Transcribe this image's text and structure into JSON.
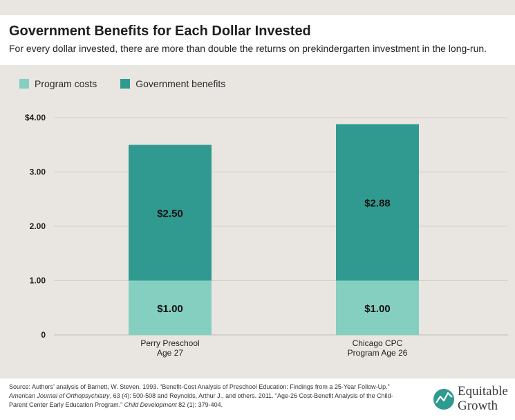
{
  "header": {
    "title": "Government Benefits for Each Dollar Invested",
    "subtitle": "For every dollar invested, there are more than double the returns on prekindergarten investment in the long-run."
  },
  "legend": {
    "items": [
      {
        "label": "Program costs",
        "color": "#84cfc0"
      },
      {
        "label": "Government benefits",
        "color": "#319a90"
      }
    ]
  },
  "chart_data": {
    "type": "bar",
    "stacked": true,
    "categories": [
      [
        "Perry Preschool",
        "Age 27"
      ],
      [
        "Chicago CPC",
        "Program Age 26"
      ]
    ],
    "series": [
      {
        "name": "Program costs",
        "color": "#84cfc0",
        "values": [
          1.0,
          1.0
        ],
        "labels": [
          "$1.00",
          "$1.00"
        ]
      },
      {
        "name": "Government benefits",
        "color": "#319a90",
        "values": [
          2.5,
          2.88
        ],
        "labels": [
          "$2.50",
          "$2.88"
        ]
      }
    ],
    "ylim": [
      0,
      4
    ],
    "yticks": [
      {
        "value": 0,
        "label": "0"
      },
      {
        "value": 1,
        "label": "1.00"
      },
      {
        "value": 2,
        "label": "2.00"
      },
      {
        "value": 3,
        "label": "3.00"
      },
      {
        "value": 4,
        "label": "$4.00"
      }
    ],
    "grid": true,
    "legend_position": "top-left"
  },
  "footer": {
    "source_parts": [
      {
        "text": "Source: Authors’ analysis of Barnett, W. Steven. 1993. “Benefit-Cost Analysis of Preschool Education: Findings from a 25-Year Follow-Up.” ",
        "italic": false
      },
      {
        "text": "American Journal of Orthopsychiatry",
        "italic": true
      },
      {
        "text": ", 63 (4): 500-508 and Reynolds, Arthur J., and others. 2011. “Age-26 Cost-Benefit Analysis of the Child-Parent Center Early Education Program.” ",
        "italic": false
      },
      {
        "text": "Child Development",
        "italic": true
      },
      {
        "text": " 82 (1): 379-404.",
        "italic": false
      }
    ],
    "logo_line1": "Equitable",
    "logo_line2": "Growth"
  }
}
